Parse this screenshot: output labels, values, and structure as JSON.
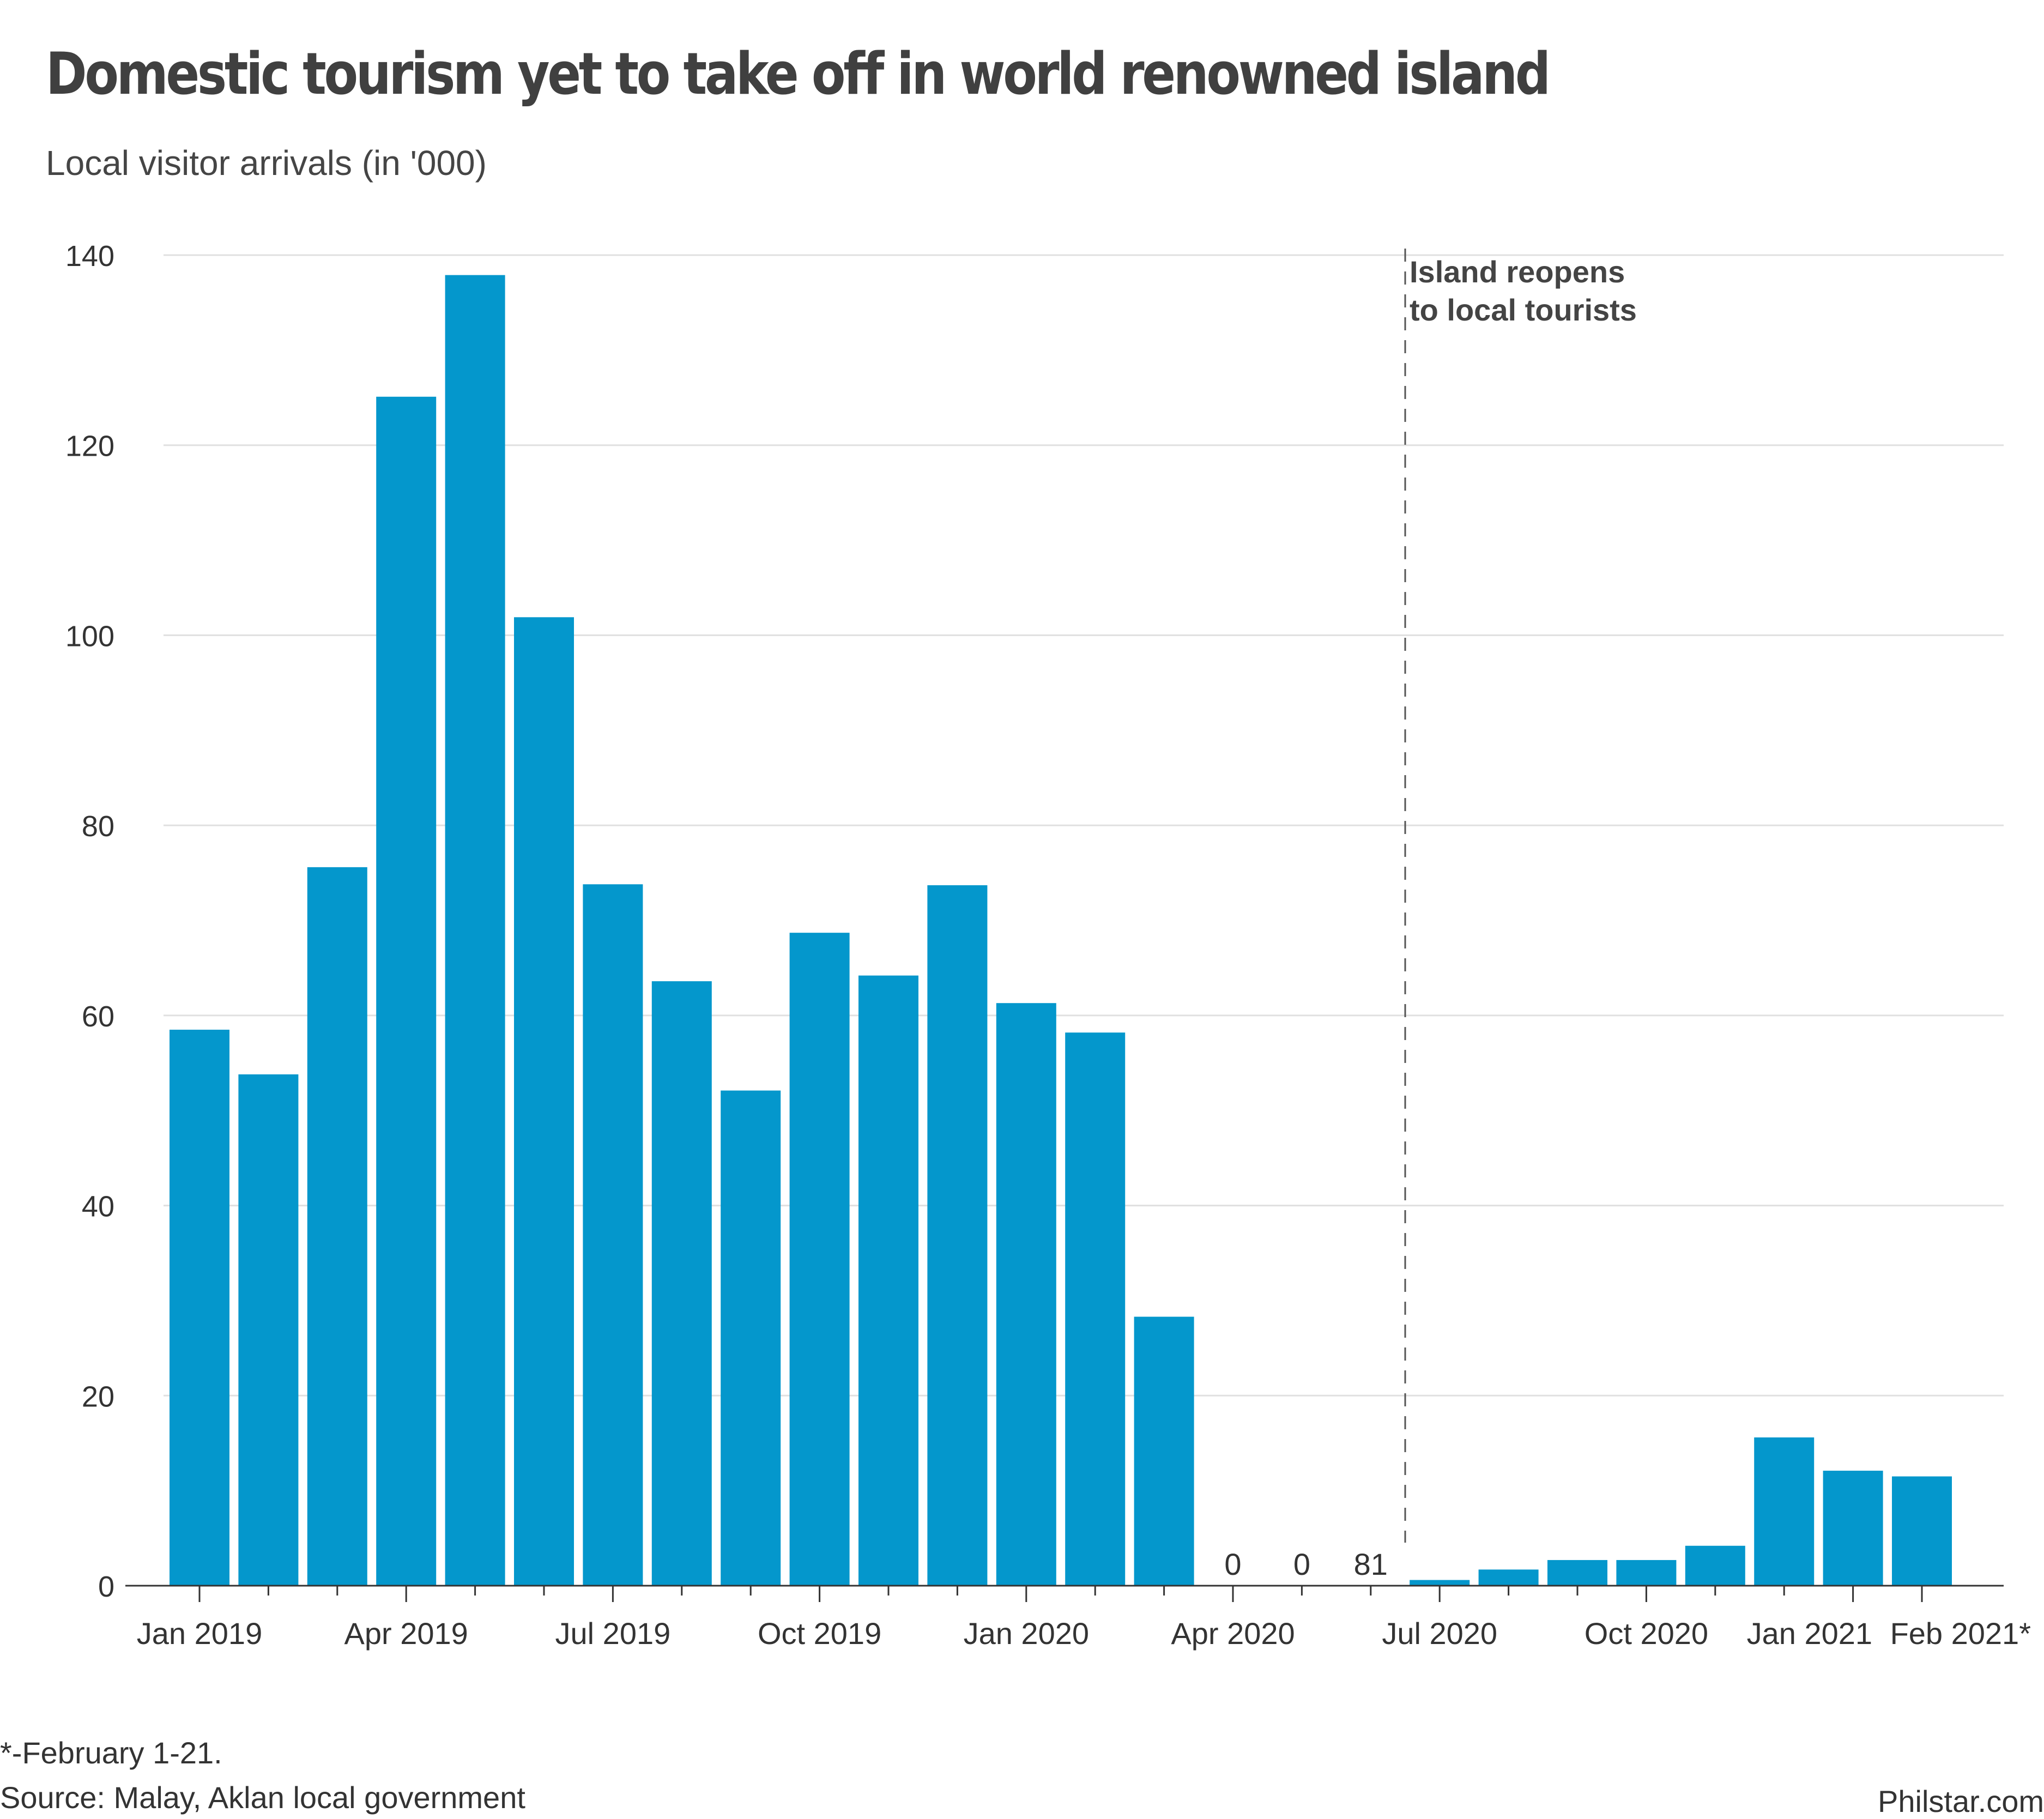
{
  "title": "Domestic tourism yet to take off in world renowned island",
  "subtitle": "Local visitor arrivals (in '000)",
  "footnote": "*-February 1-21.",
  "source": "Source: Malay, Aklan local government",
  "credit": "Philstar.com",
  "colors": {
    "bar": "#0497cc",
    "grid": "#e0e0e0",
    "axis": "#333333",
    "annotation_line": "#555555",
    "text": "#333333"
  },
  "chart_data": {
    "type": "bar",
    "categories": [
      "Jan 2019",
      "Feb 2019",
      "Mar 2019",
      "Apr 2019",
      "May 2019",
      "Jun 2019",
      "Jul 2019",
      "Aug 2019",
      "Sep 2019",
      "Oct 2019",
      "Nov 2019",
      "Dec 2019",
      "Jan 2020",
      "Feb 2020",
      "Mar 2020",
      "Apr 2020",
      "May 2020",
      "Jun 2020",
      "Jul 2020",
      "Aug 2020",
      "Sep 2020",
      "Oct 2020",
      "Nov 2020",
      "Dec 2020",
      "Jan 2021",
      "Feb 2021"
    ],
    "values": [
      58.5,
      53.8,
      75.6,
      125.1,
      137.9,
      101.9,
      73.8,
      63.6,
      52.1,
      68.7,
      64.2,
      73.7,
      61.3,
      58.2,
      28.3,
      0,
      0,
      0.081,
      0.6,
      1.7,
      2.7,
      2.7,
      4.2,
      15.6,
      12.1,
      11.5
    ],
    "x_tick_labels": [
      "Jan 2019",
      "Apr 2019",
      "Jul 2019",
      "Oct 2019",
      "Jan 2020",
      "Apr 2020",
      "Jul 2020",
      "Oct 2020",
      "Jan 2021",
      "Feb 2021*"
    ],
    "x_tick_label_categories": [
      "Jan 2019",
      "Apr 2019",
      "Jul 2019",
      "Oct 2019",
      "Jan 2020",
      "Apr 2020",
      "Jul 2020",
      "Oct 2020",
      "Jan 2021",
      "Feb 2021"
    ],
    "value_labels": [
      {
        "category": "Apr 2020",
        "text": "0"
      },
      {
        "category": "May 2020",
        "text": "0"
      },
      {
        "category": "Jun 2020",
        "text": "81"
      }
    ],
    "y_ticks": [
      0,
      20,
      40,
      60,
      80,
      100,
      120,
      140
    ],
    "ylim": [
      0,
      140
    ],
    "xlabel": "",
    "ylabel": "",
    "grid": "horizontal",
    "legend": "none",
    "annotations": [
      {
        "type": "vertical-dashed-line",
        "between": [
          "Jun 2020",
          "Jul 2020"
        ],
        "lines": [
          "Island reopens",
          "to local tourists"
        ]
      }
    ]
  }
}
